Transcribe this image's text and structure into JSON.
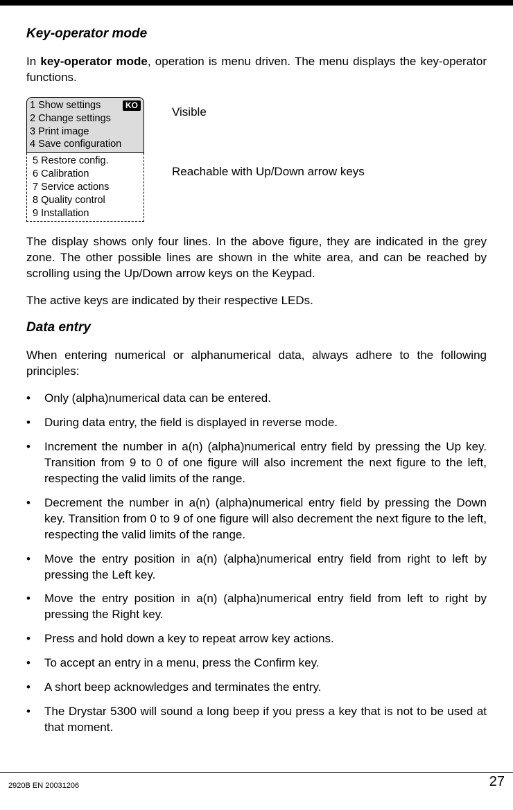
{
  "section1": {
    "title": "Key-operator mode",
    "intro_prefix": "In ",
    "intro_bold": "key-operator mode",
    "intro_suffix": ", operation is menu driven. The menu displays the key-operator functions."
  },
  "menu": {
    "badge": "KO",
    "visible": [
      "1 Show settings",
      "2 Change settings",
      "3 Print image",
      "4 Save configuration"
    ],
    "hidden": [
      "5 Restore config.",
      "6 Calibration",
      "7 Service actions",
      "8 Quality control",
      "9 Installation"
    ],
    "label_visible": "Visible",
    "label_reachable": "Reachable with Up/Down arrow keys"
  },
  "para_after_figure": "The display shows only four lines. In the above figure, they are indicated in the grey zone. The other possible lines are shown in the white area, and can be reached by scrolling using the Up/Down arrow keys on the Keypad.",
  "para_active_keys": "The active keys are indicated by their respective LEDs.",
  "section2": {
    "title": "Data entry",
    "intro": "When entering numerical or alphanumerical data, always adhere to the following principles:",
    "bullets": [
      "Only (alpha)numerical data can be entered.",
      "During data entry, the field is displayed in reverse mode.",
      "Increment the number in a(n) (alpha)numerical entry field by pressing the Up key. Transition from 9 to 0 of one figure will also increment the next figure to the left, respecting the valid limits of the range.",
      "Decrement the number in a(n) (alpha)numerical entry field by pressing the Down key. Transition from 0 to 9 of one figure will also decrement the next figure to the left, respecting the valid limits of the range.",
      "Move the entry position in a(n) (alpha)numerical entry field from right to left by pressing the Left key.",
      "Move the entry position in a(n) (alpha)numerical entry field from left to right by pressing the Right key.",
      "Press and hold down a key to repeat arrow key actions.",
      "To accept an entry in a menu, press the Confirm key.",
      "A short beep acknowledges and terminates the entry.",
      "The Drystar 5300 will sound a long beep if you press a key that is not to be used at that moment."
    ]
  },
  "footer": {
    "doc_id": "2920B EN 20031206",
    "page": "27"
  }
}
